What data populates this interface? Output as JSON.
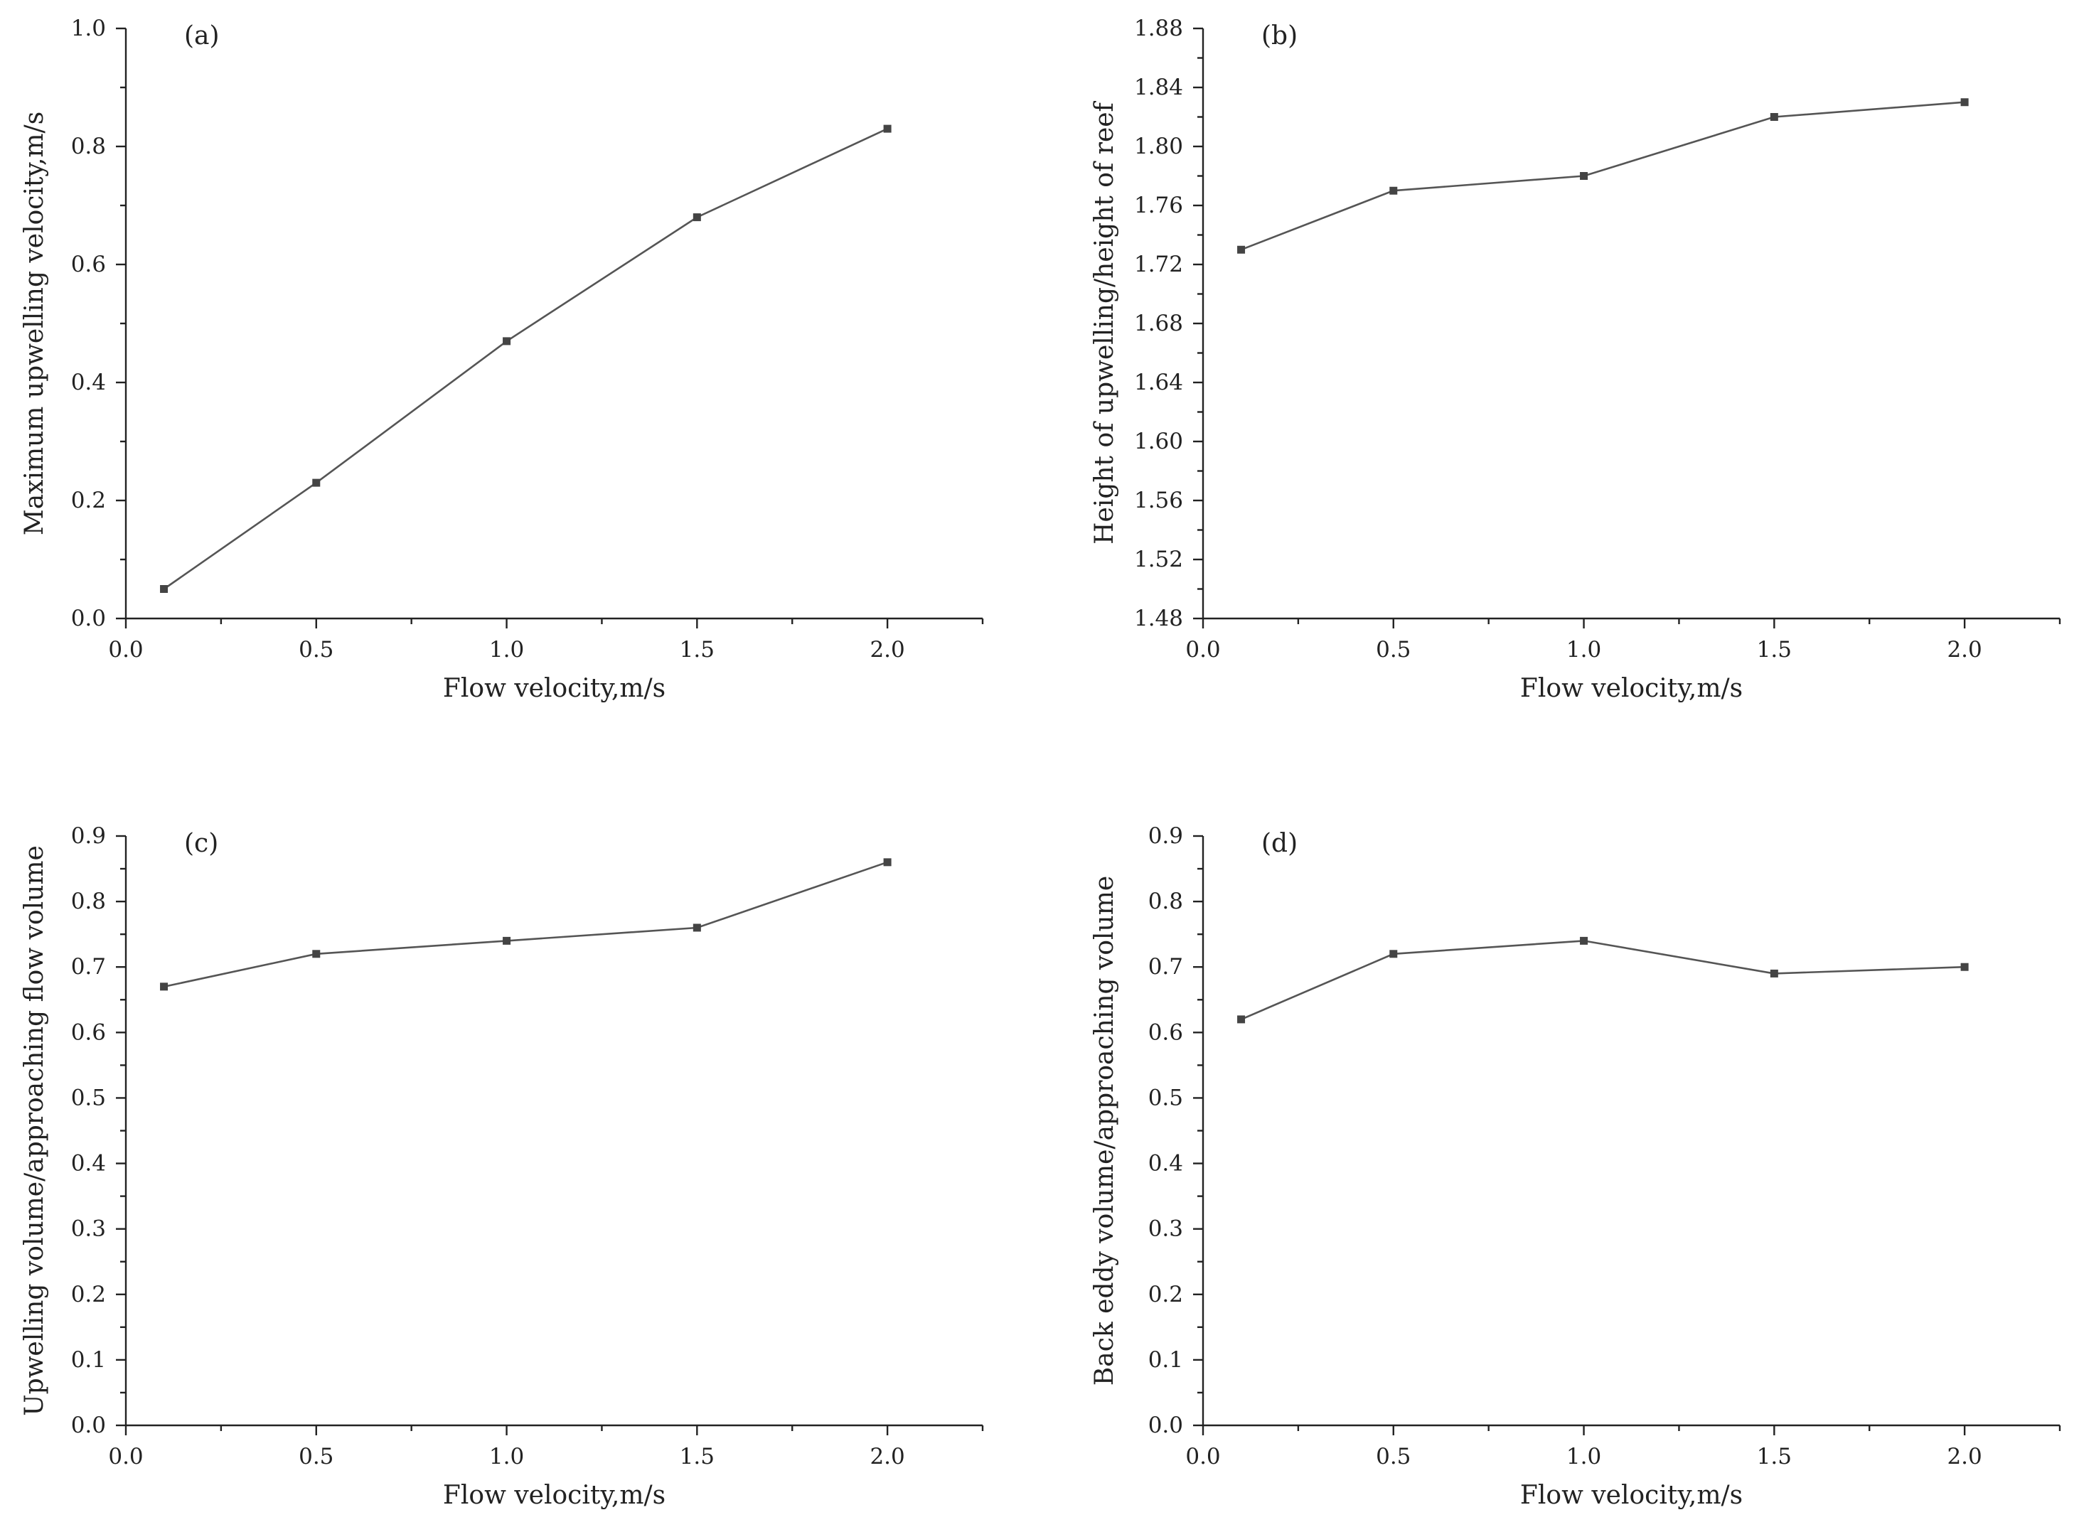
{
  "figure": {
    "background": "#ffffff",
    "line_color": "#555555",
    "marker_color": "#444444",
    "axis_color": "#222222"
  },
  "chart_data": [
    {
      "panel_label": "(a)",
      "type": "line",
      "xlabel": "Flow velocity,m/s",
      "ylabel": "Maximum upwelling velocity,m/s",
      "x": [
        0.1,
        0.5,
        1.0,
        1.5,
        2.0
      ],
      "values": [
        0.05,
        0.23,
        0.47,
        0.68,
        0.83
      ],
      "xlim": [
        0.0,
        2.25
      ],
      "ylim": [
        0.0,
        1.0
      ],
      "x_ticks": [
        "0.0",
        "0.5",
        "1.0",
        "1.5",
        "2.0"
      ],
      "y_ticks": [
        "0.0",
        "0.2",
        "0.4",
        "0.6",
        "0.8",
        "1.0"
      ],
      "grid": false,
      "marker": "square"
    },
    {
      "panel_label": "(b)",
      "type": "line",
      "xlabel": "Flow velocity,m/s",
      "ylabel": "Height of upwelling/height of reef",
      "x": [
        0.1,
        0.5,
        1.0,
        1.5,
        2.0
      ],
      "values": [
        1.73,
        1.77,
        1.78,
        1.82,
        1.83
      ],
      "xlim": [
        0.0,
        2.25
      ],
      "ylim": [
        1.48,
        1.88
      ],
      "x_ticks": [
        "0.0",
        "0.5",
        "1.0",
        "1.5",
        "2.0"
      ],
      "y_ticks": [
        "1.48",
        "1.52",
        "1.56",
        "1.60",
        "1.64",
        "1.68",
        "1.72",
        "1.76",
        "1.80",
        "1.84",
        "1.88"
      ],
      "grid": false,
      "marker": "square"
    },
    {
      "panel_label": "(c)",
      "type": "line",
      "xlabel": "Flow velocity,m/s",
      "ylabel": "Upwelling volume/approaching flow volume",
      "x": [
        0.1,
        0.5,
        1.0,
        1.5,
        2.0
      ],
      "values": [
        0.67,
        0.72,
        0.74,
        0.76,
        0.86
      ],
      "xlim": [
        0.0,
        2.25
      ],
      "ylim": [
        0.0,
        0.9
      ],
      "x_ticks": [
        "0.0",
        "0.5",
        "1.0",
        "1.5",
        "2.0"
      ],
      "y_ticks": [
        "0.0",
        "0.1",
        "0.2",
        "0.3",
        "0.4",
        "0.5",
        "0.6",
        "0.7",
        "0.8",
        "0.9"
      ],
      "grid": false,
      "marker": "square"
    },
    {
      "panel_label": "(d)",
      "type": "line",
      "xlabel": "Flow velocity,m/s",
      "ylabel": "Back eddy volume/approaching volume",
      "x": [
        0.1,
        0.5,
        1.0,
        1.5,
        2.0
      ],
      "values": [
        0.62,
        0.72,
        0.74,
        0.69,
        0.7
      ],
      "xlim": [
        0.0,
        2.25
      ],
      "ylim": [
        0.0,
        0.9
      ],
      "x_ticks": [
        "0.0",
        "0.5",
        "1.0",
        "1.5",
        "2.0"
      ],
      "y_ticks": [
        "0.0",
        "0.1",
        "0.2",
        "0.3",
        "0.4",
        "0.5",
        "0.6",
        "0.7",
        "0.8",
        "0.9"
      ],
      "grid": false,
      "marker": "square"
    }
  ]
}
